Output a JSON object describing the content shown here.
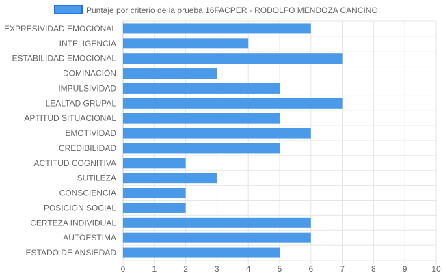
{
  "chart_data": {
    "type": "bar",
    "orientation": "horizontal",
    "categories": [
      "EXPRESIVIDAD EMOCIONAL",
      "INTELIGENCIA",
      "ESTABILIDAD EMOCIONAL",
      "DOMINACIÓN",
      "IMPULSIVIDAD",
      "LEALTAD GRUPAL",
      "APTITUD SITUACIONAL",
      "EMOTIVIDAD",
      "CREDIBILIDAD",
      "ACTITUD COGNITIVA",
      "SUTILEZA",
      "CONSCIENCIA",
      "POSICIÓN SOCIAL",
      "CERTEZA INDIVIDUAL",
      "AUTOESTIMA",
      "ESTADO DE ANSIEDAD"
    ],
    "series": [
      {
        "name": "Puntaje por criterio de la prueba 16FACPER - RODOLFO MENDOZA CANCINO",
        "values": [
          6,
          4,
          7,
          3,
          5,
          7,
          5,
          6,
          5,
          2,
          3,
          2,
          2,
          6,
          6,
          5
        ],
        "color": "#4a9ae9",
        "border_color": "#1e73e8"
      }
    ],
    "x_ticks": [
      "0",
      "1",
      "2",
      "3",
      "4",
      "5",
      "6",
      "7",
      "8",
      "9",
      "10"
    ],
    "xlim": [
      0,
      10
    ],
    "grid": true,
    "legend_position": "top-center",
    "grid_color": "#e5e5e5",
    "axis_color": "#cccccc",
    "text_color": "#666666"
  }
}
